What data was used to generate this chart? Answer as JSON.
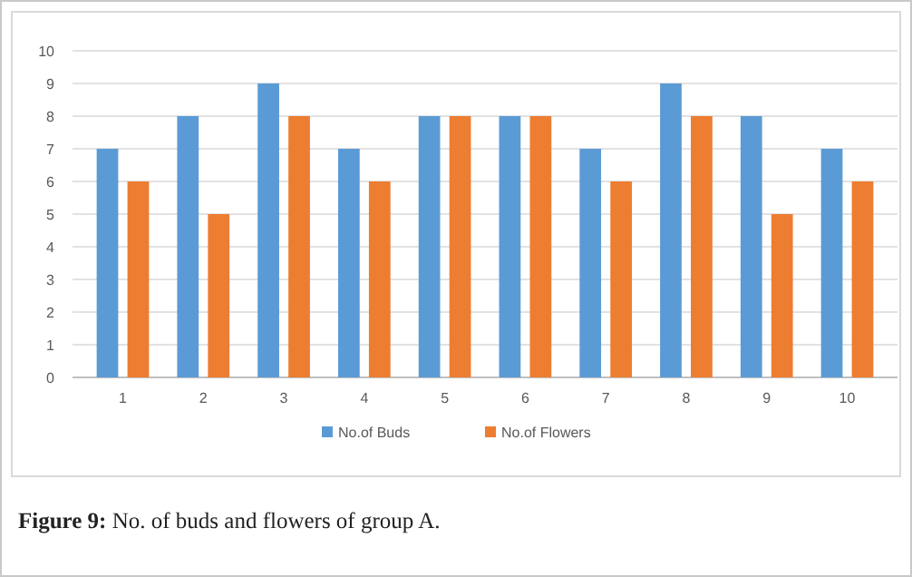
{
  "chart_data": {
    "type": "bar",
    "categories": [
      "1",
      "2",
      "3",
      "4",
      "5",
      "6",
      "7",
      "8",
      "9",
      "10"
    ],
    "series": [
      {
        "name": "No.of Buds",
        "color": "#5b9bd5",
        "values": [
          7,
          8,
          9,
          7,
          8,
          8,
          7,
          9,
          8,
          7
        ]
      },
      {
        "name": "No.of Flowers",
        "color": "#ed7d31",
        "values": [
          6,
          5,
          8,
          6,
          8,
          8,
          6,
          8,
          5,
          6
        ]
      }
    ],
    "ylim": [
      0,
      10
    ],
    "yticks": [
      0,
      1,
      2,
      3,
      4,
      5,
      6,
      7,
      8,
      9,
      10
    ],
    "grid": "y",
    "legend": "bottom",
    "annotations": [
      "Figure 9: No. of buds and flowers of group A."
    ]
  }
}
